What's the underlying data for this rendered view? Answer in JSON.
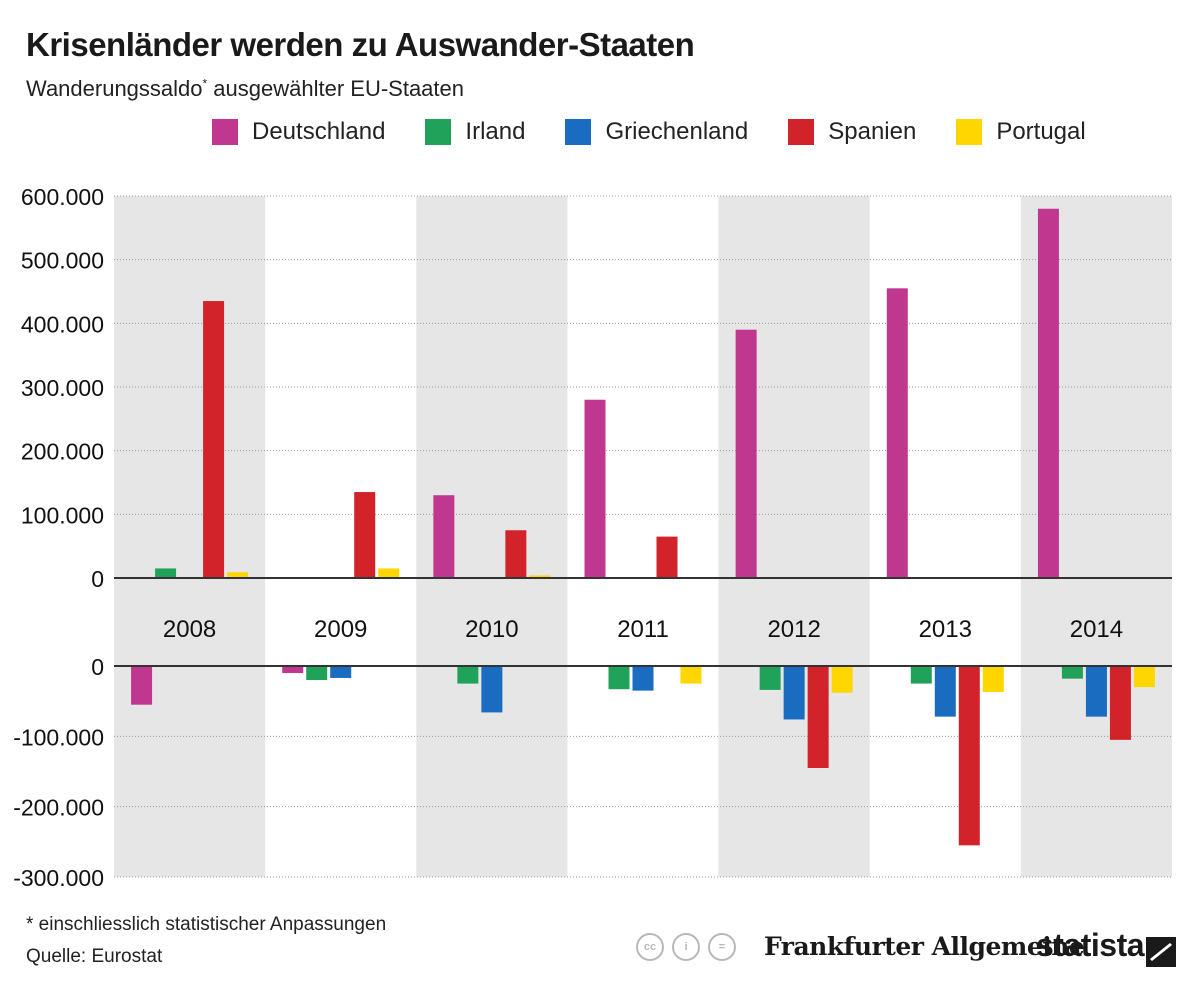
{
  "header": {
    "title": "Krisenländer werden zu Auswander-Staaten",
    "subtitle": "Wanderungssaldo",
    "subtitle_marker": "*",
    "subtitle_rest": " ausgewählter EU-Staaten"
  },
  "chart_data": {
    "type": "bar",
    "title": "Krisenländer werden zu Auswander-Staaten",
    "subtitle": "Wanderungssaldo* ausgewählter EU-Staaten",
    "categories": [
      "2008",
      "2009",
      "2010",
      "2011",
      "2012",
      "2013",
      "2014"
    ],
    "series": [
      {
        "name": "Deutschland",
        "color": "#c0378f",
        "values": [
          -55000,
          -10000,
          130000,
          280000,
          390000,
          455000,
          580000
        ]
      },
      {
        "name": "Irland",
        "color": "#21a25a",
        "values": [
          15000,
          -20000,
          -25000,
          -33000,
          -34000,
          -25000,
          -18000
        ]
      },
      {
        "name": "Griechenland",
        "color": "#1a6cc0",
        "values": [
          0,
          -17000,
          -66000,
          -35000,
          -76000,
          -72000,
          -72000
        ]
      },
      {
        "name": "Spanien",
        "color": "#d2232a",
        "values": [
          435000,
          135000,
          75000,
          65000,
          -145000,
          -255000,
          -105000
        ]
      },
      {
        "name": "Portugal",
        "color": "#ffd600",
        "values": [
          9000,
          15000,
          4000,
          -25000,
          -38000,
          -37000,
          -30000
        ]
      }
    ],
    "positive_axis": {
      "ticks": [
        "600.000",
        "500.000",
        "400.000",
        "300.000",
        "200.000",
        "100.000",
        "0"
      ],
      "tick_values": [
        600000,
        500000,
        400000,
        300000,
        200000,
        100000,
        0
      ],
      "ylim": [
        0,
        600000
      ]
    },
    "negative_axis": {
      "ticks": [
        "0",
        "-100.000",
        "-200.000",
        "-300.000"
      ],
      "tick_values": [
        0,
        -100000,
        -200000,
        -300000
      ],
      "ylim": [
        -300000,
        0
      ]
    },
    "xlabel": "",
    "ylabel": "",
    "legend_position": "top",
    "grid": true
  },
  "footer": {
    "footnote": "* einschliesslich statistischer Anpassungen",
    "source": "Quelle: Eurostat",
    "license_icons": [
      "cc-icon",
      "by-icon",
      "nd-icon"
    ],
    "license_labels": [
      "cc",
      "i",
      "="
    ],
    "publisher": "Frankfurter Allgemeine",
    "brand": "statista"
  }
}
